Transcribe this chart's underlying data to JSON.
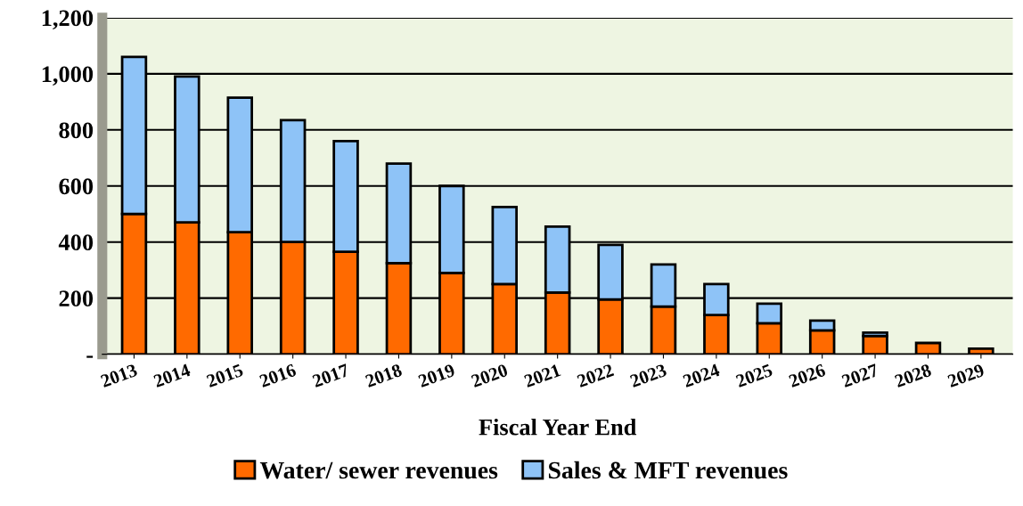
{
  "chart_data": {
    "type": "bar",
    "stacked": true,
    "xlabel": "Fiscal Year End",
    "categories": [
      "2013",
      "2014",
      "2015",
      "2016",
      "2017",
      "2018",
      "2019",
      "2020",
      "2021",
      "2022",
      "2023",
      "2024",
      "2025",
      "2026",
      "2027",
      "2028",
      "2029"
    ],
    "series": [
      {
        "name": "Water/ sewer revenues",
        "color": "#ff6a00",
        "values": [
          500,
          470,
          435,
          400,
          365,
          325,
          290,
          250,
          220,
          195,
          170,
          140,
          110,
          85,
          65,
          40,
          20
        ]
      },
      {
        "name": "Sales & MFT revenues",
        "color": "#8ec3f7",
        "values": [
          560,
          520,
          480,
          435,
          395,
          355,
          310,
          275,
          235,
          195,
          150,
          110,
          70,
          35,
          12,
          null,
          null
        ]
      }
    ],
    "ylim": [
      0,
      1200
    ],
    "yticks": [
      {
        "value": 0,
        "label": "-"
      },
      {
        "value": 200,
        "label": "200"
      },
      {
        "value": 400,
        "label": "400"
      },
      {
        "value": 600,
        "label": "600"
      },
      {
        "value": 800,
        "label": "800"
      },
      {
        "value": 1000,
        "label": "1,000"
      },
      {
        "value": 1200,
        "label": "1,200"
      }
    ],
    "grid": "y",
    "legend": "bottom"
  }
}
